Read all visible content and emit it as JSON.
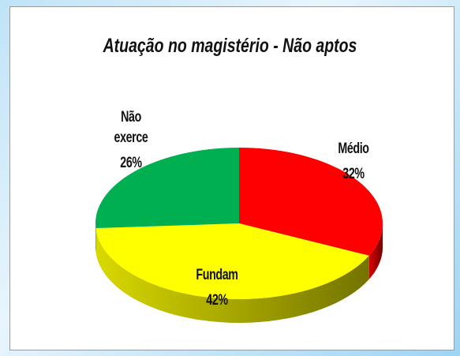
{
  "chart_data": {
    "type": "pie3d",
    "title": "Atuação no magistério - Não aptos",
    "categories": [
      "Médio",
      "Fundam",
      "Não exerce"
    ],
    "values": [
      32,
      42,
      26
    ],
    "value_labels": [
      "32%",
      "42%",
      "26%"
    ],
    "colors": [
      "#ff0000",
      "#ffff00",
      "#00b050"
    ]
  }
}
